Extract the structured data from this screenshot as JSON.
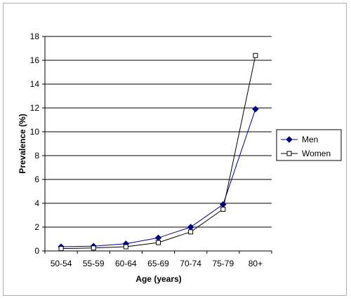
{
  "chart_data": {
    "type": "line",
    "title": "",
    "xlabel": "Age (years)",
    "ylabel": "Prevalence (%)",
    "categories": [
      "50-54",
      "55-59",
      "60-64",
      "65-69",
      "70-74",
      "75-79",
      "80+"
    ],
    "ylim": [
      0,
      18
    ],
    "yticks": [
      0,
      2,
      4,
      6,
      8,
      10,
      12,
      14,
      16,
      18
    ],
    "grid": "horizontal",
    "legend_position": "right",
    "series": [
      {
        "name": "Men",
        "marker": "diamond-filled",
        "color": "#00008b",
        "values": [
          0.35,
          0.4,
          0.6,
          1.1,
          2.0,
          3.9,
          11.9
        ]
      },
      {
        "name": "Women",
        "marker": "square-open",
        "color": "#000000",
        "values": [
          0.2,
          0.25,
          0.35,
          0.7,
          1.6,
          3.5,
          16.4
        ]
      }
    ]
  }
}
